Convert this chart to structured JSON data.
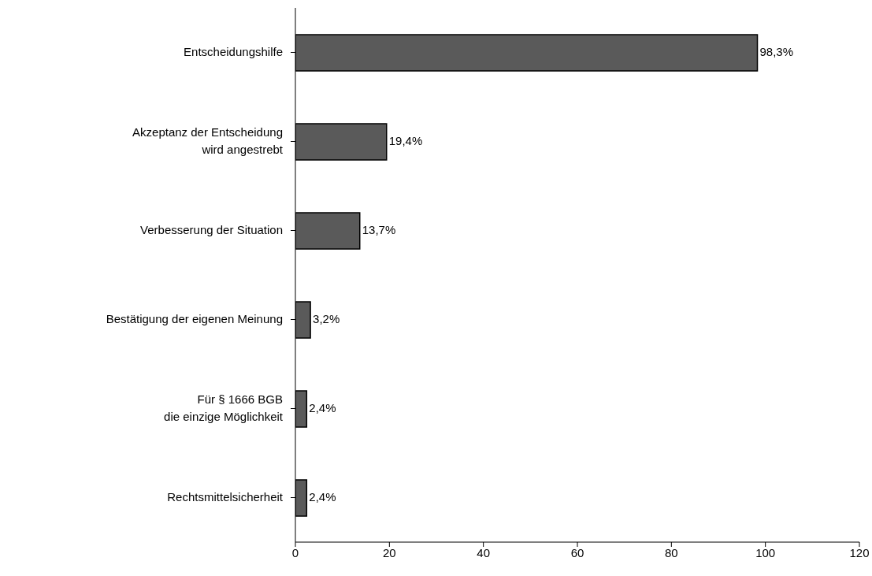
{
  "chart_data": {
    "type": "bar",
    "orientation": "horizontal",
    "categories": [
      "Entscheidungshilfe",
      "Akzeptanz der Entscheidung\nwird angestrebt",
      "Verbesserung der Situation",
      "Bestätigung der eigenen Meinung",
      "Für § 1666 BGB\ndie einzige Möglichkeit",
      "Rechtsmittelsicherheit"
    ],
    "values": [
      98.3,
      19.4,
      13.7,
      3.2,
      2.4,
      2.4
    ],
    "value_labels": [
      "98,3%",
      "19,4%",
      "13,7%",
      "3,2%",
      "2,4%",
      "2,4%"
    ],
    "color": "#5a5a5a",
    "xlim": [
      0,
      120
    ],
    "xticks": [
      0,
      20,
      40,
      60,
      80,
      100,
      120
    ]
  }
}
